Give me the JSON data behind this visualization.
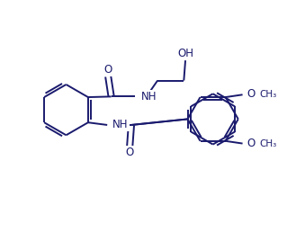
{
  "background_color": "#ffffff",
  "line_color": "#1a1a6e",
  "line_width": 1.4,
  "figsize": [
    3.29,
    2.58
  ],
  "dpi": 100,
  "font_size": 8.5,
  "font_color": "#1a1a6e",
  "xlim": [
    0,
    9.5
  ],
  "ylim": [
    0,
    7.4
  ]
}
